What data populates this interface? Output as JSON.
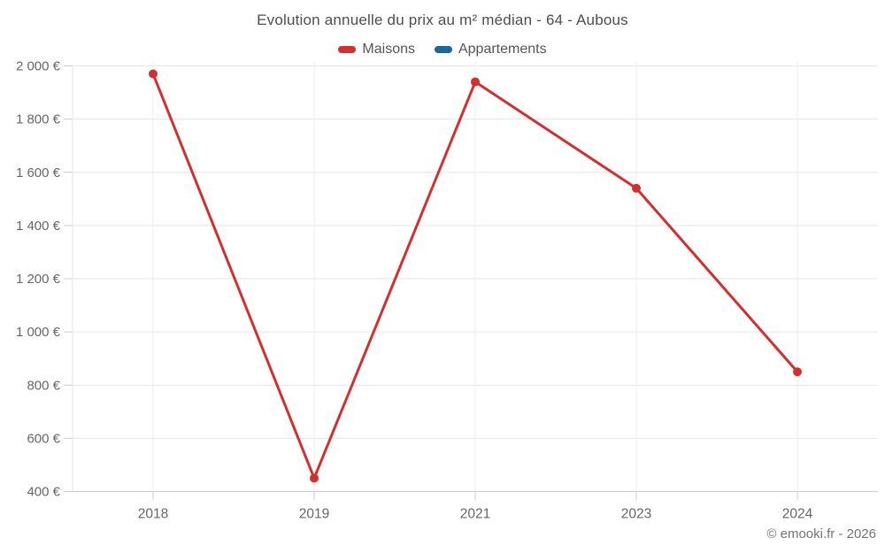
{
  "chart_data": {
    "type": "line",
    "title": "Evolution annuelle du prix au m² médian - 64 - Aubous",
    "categories": [
      "2018",
      "2019",
      "2021",
      "2023",
      "2024"
    ],
    "series": [
      {
        "name": "Maisons",
        "color": "#d32f2f",
        "values": [
          1970,
          450,
          1940,
          1540,
          850
        ]
      },
      {
        "name": "Appartements",
        "color": "#17699c",
        "values": []
      }
    ],
    "xlabel": "",
    "ylabel": "",
    "ylim": [
      400,
      2000
    ],
    "ytick_step": 200,
    "ytick_suffix": " €",
    "grid": true,
    "legend_position": "top",
    "credits": "© emooki.fr - 2026"
  },
  "colors": {
    "grid_line": "#e6e6e6",
    "grid_line_vertical": "#ececec",
    "axis_line": "#c8c8c8",
    "tick": "#cccccc",
    "axis_label_text": "#666666",
    "title_text": "#4d4d4d",
    "legend_text": "#555555",
    "credits_text": "#737373"
  }
}
